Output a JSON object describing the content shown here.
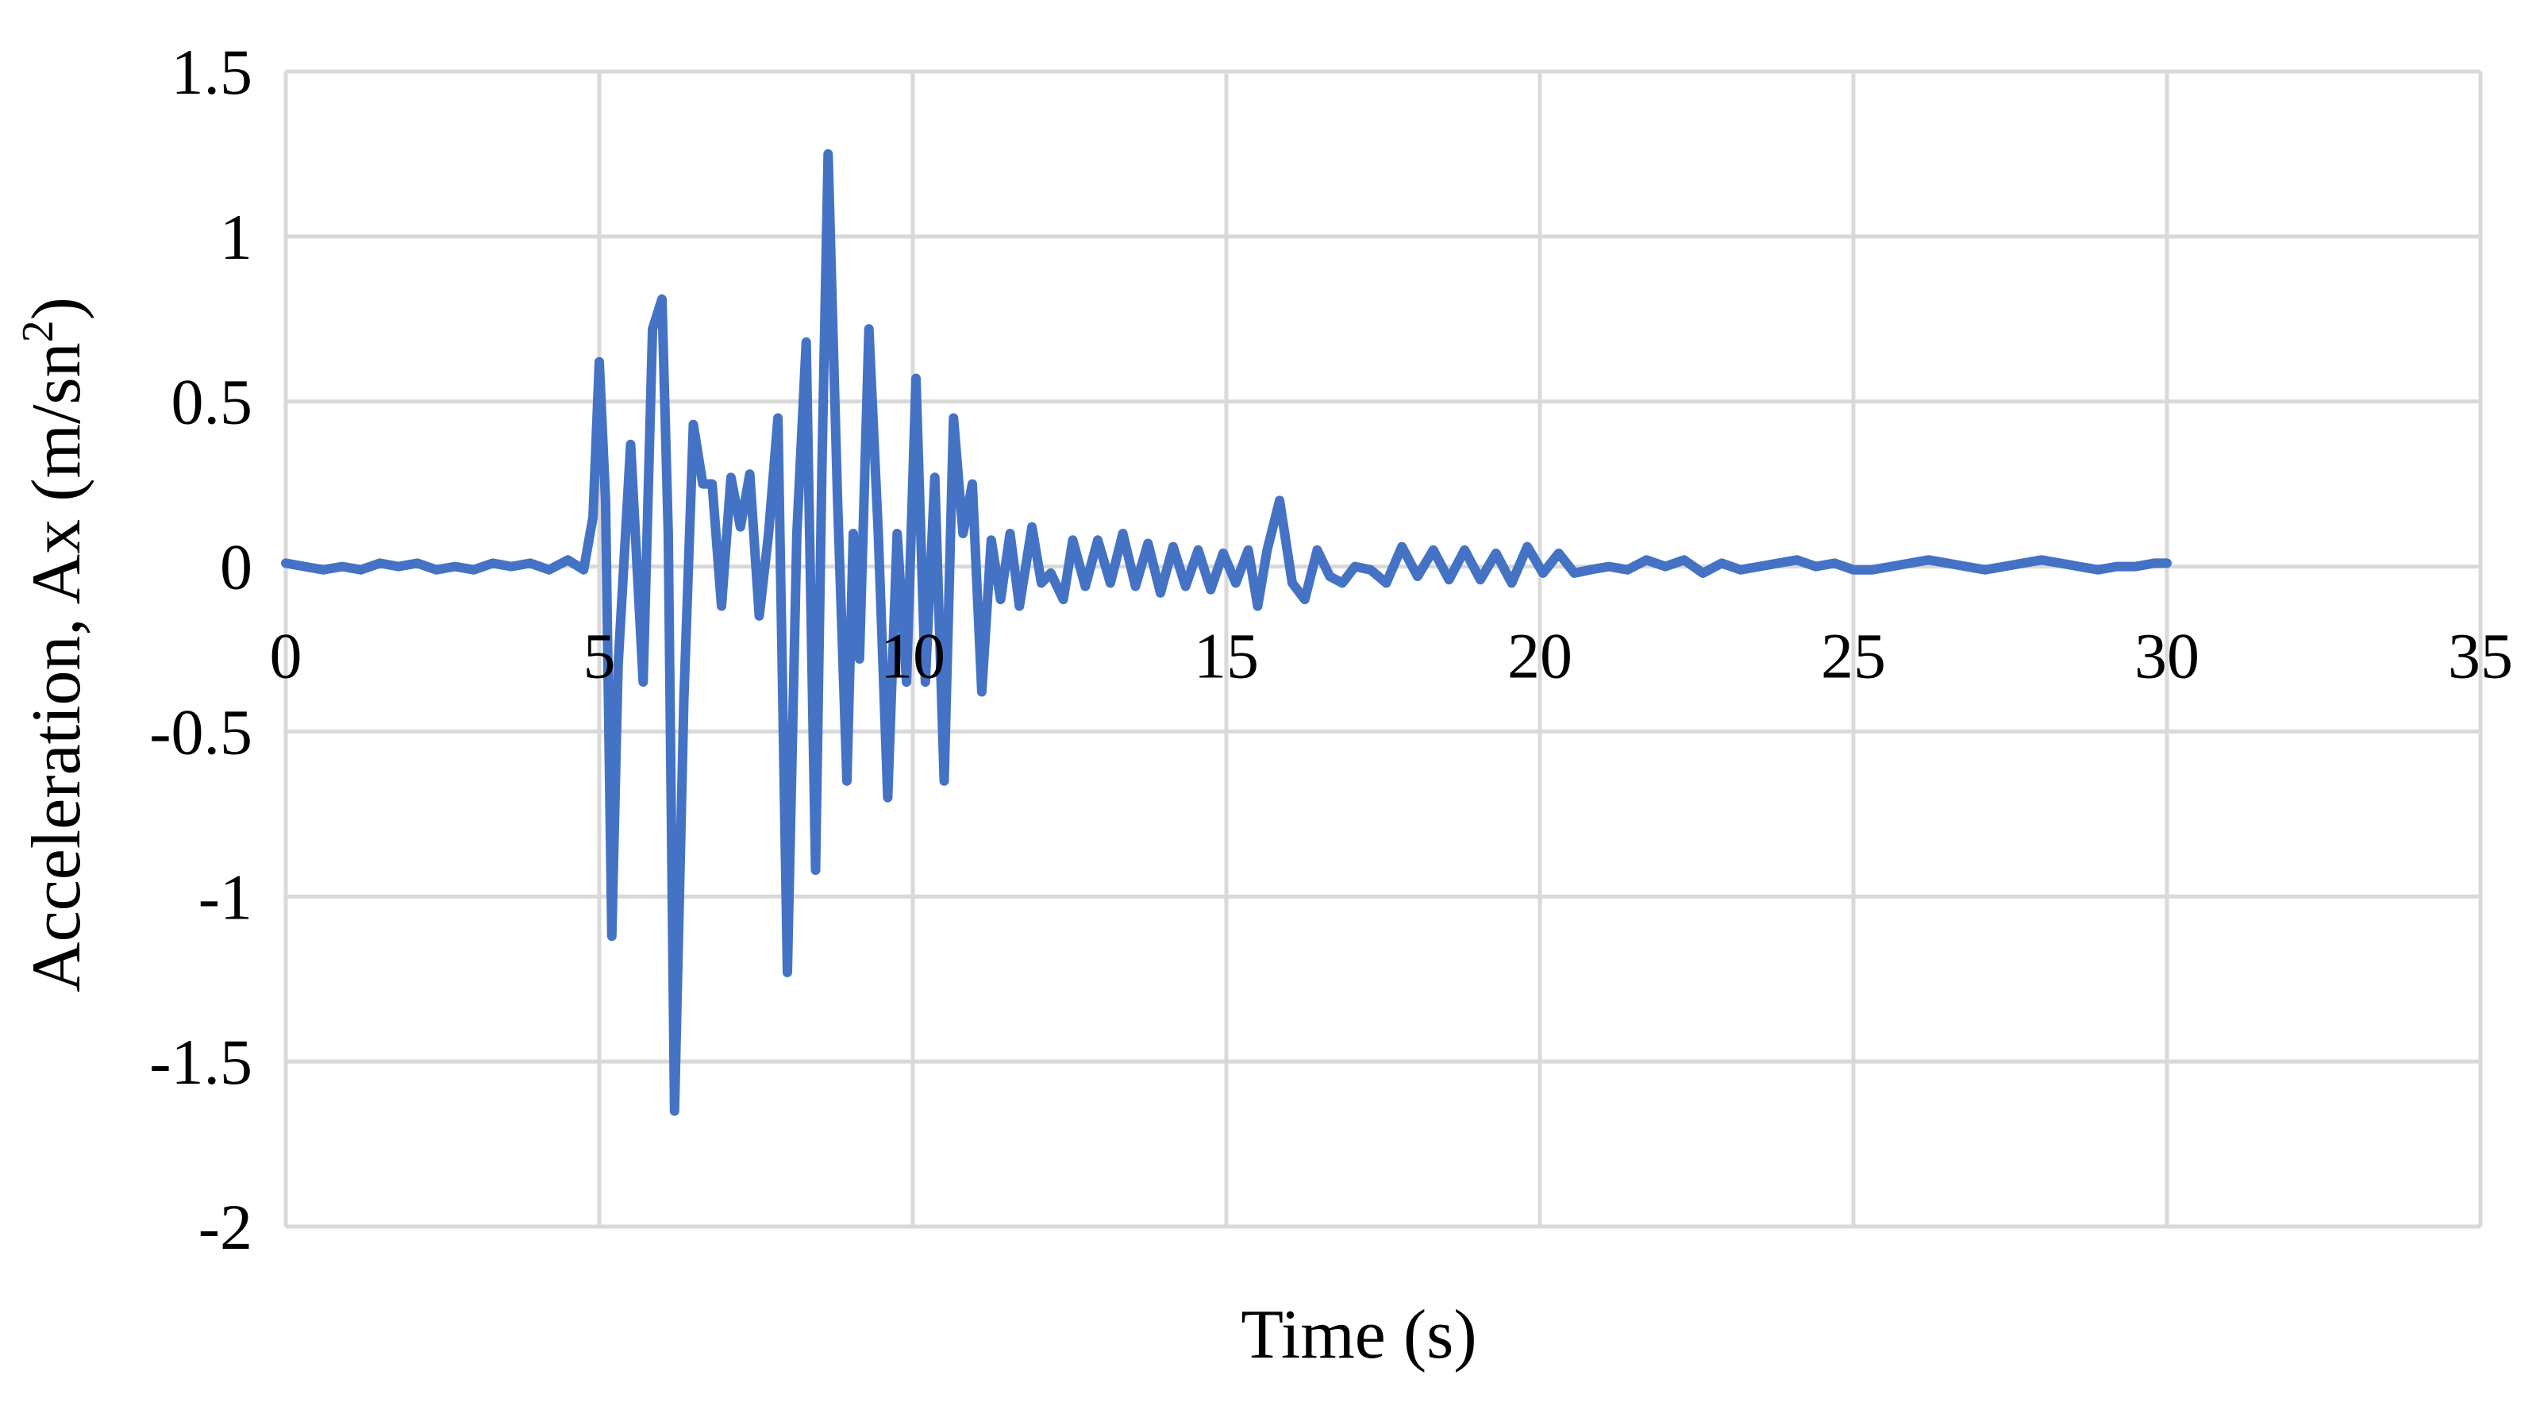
{
  "chart_data": {
    "type": "line",
    "title": "",
    "xlabel": "Time (s)",
    "ylabel_main": "Acceleration, Ax (m/sn",
    "ylabel_sup": "2",
    "ylabel_end": ")",
    "xlim": [
      0,
      35
    ],
    "ylim": [
      -2,
      1.5
    ],
    "xticks": [
      0,
      5,
      10,
      15,
      20,
      25,
      30,
      35
    ],
    "yticks": [
      -2,
      -1.5,
      -1,
      -0.5,
      0,
      0.5,
      1,
      1.5
    ],
    "xtick_labels": [
      "0",
      "5",
      "10",
      "15",
      "20",
      "25",
      "30",
      "35"
    ],
    "ytick_labels": [
      "-2",
      "-1.5",
      "-1",
      "-0.5",
      "0",
      "0.5",
      "1",
      "1.5"
    ],
    "grid": true,
    "legend": "none",
    "series": [
      {
        "color": "#4472c4",
        "x": [
          0,
          0.3,
          0.6,
          0.9,
          1.2,
          1.5,
          1.8,
          2.1,
          2.4,
          2.7,
          3.0,
          3.3,
          3.6,
          3.9,
          4.2,
          4.5,
          4.75,
          4.9,
          5.0,
          5.1,
          5.2,
          5.3,
          5.5,
          5.7,
          5.85,
          6.0,
          6.1,
          6.2,
          6.35,
          6.5,
          6.65,
          6.8,
          6.95,
          7.1,
          7.25,
          7.4,
          7.55,
          7.7,
          7.85,
          8.0,
          8.15,
          8.3,
          8.45,
          8.55,
          8.65,
          8.8,
          8.95,
          9.05,
          9.15,
          9.3,
          9.45,
          9.6,
          9.75,
          9.9,
          10.05,
          10.2,
          10.35,
          10.5,
          10.65,
          10.8,
          10.95,
          11.1,
          11.25,
          11.4,
          11.55,
          11.7,
          11.9,
          12.05,
          12.2,
          12.4,
          12.55,
          12.75,
          12.95,
          13.15,
          13.35,
          13.55,
          13.75,
          13.95,
          14.15,
          14.35,
          14.55,
          14.75,
          14.95,
          15.15,
          15.35,
          15.5,
          15.65,
          15.85,
          16.05,
          16.25,
          16.45,
          16.65,
          16.85,
          17.05,
          17.3,
          17.55,
          17.8,
          18.05,
          18.3,
          18.55,
          18.8,
          19.05,
          19.3,
          19.55,
          19.8,
          20.05,
          20.3,
          20.55,
          20.8,
          21.1,
          21.4,
          21.7,
          22.0,
          22.3,
          22.6,
          22.9,
          23.2,
          23.5,
          23.8,
          24.1,
          24.4,
          24.7,
          25.0,
          25.3,
          25.6,
          25.9,
          26.2,
          26.5,
          26.8,
          27.1,
          27.4,
          27.7,
          28.0,
          28.3,
          28.6,
          28.9,
          29.2,
          29.5,
          29.8,
          30.0
        ],
        "y": [
          0.01,
          0.0,
          -0.01,
          0.0,
          -0.01,
          0.01,
          0.0,
          0.01,
          -0.01,
          0.0,
          -0.01,
          0.01,
          0.0,
          0.01,
          -0.01,
          0.02,
          -0.01,
          0.15,
          0.62,
          0.2,
          -1.12,
          -0.3,
          0.37,
          -0.35,
          0.72,
          0.81,
          0.1,
          -1.65,
          -0.4,
          0.43,
          0.25,
          0.25,
          -0.12,
          0.27,
          0.12,
          0.28,
          -0.15,
          0.1,
          0.45,
          -1.23,
          0.1,
          0.68,
          -0.92,
          0.3,
          1.25,
          0.2,
          -0.65,
          0.1,
          -0.28,
          0.72,
          0.1,
          -0.7,
          0.1,
          -0.35,
          0.57,
          -0.35,
          0.27,
          -0.65,
          0.45,
          0.1,
          0.25,
          -0.38,
          0.08,
          -0.1,
          0.1,
          -0.12,
          0.12,
          -0.05,
          -0.02,
          -0.1,
          0.08,
          -0.06,
          0.08,
          -0.05,
          0.1,
          -0.06,
          0.07,
          -0.08,
          0.06,
          -0.06,
          0.05,
          -0.07,
          0.04,
          -0.05,
          0.05,
          -0.12,
          0.05,
          0.2,
          -0.05,
          -0.1,
          0.05,
          -0.03,
          -0.05,
          0.0,
          -0.01,
          -0.05,
          0.06,
          -0.03,
          0.05,
          -0.04,
          0.05,
          -0.04,
          0.04,
          -0.05,
          0.06,
          -0.02,
          0.04,
          -0.02,
          -0.01,
          0.0,
          -0.01,
          0.02,
          0.0,
          0.02,
          -0.02,
          0.01,
          -0.01,
          0.0,
          0.01,
          0.02,
          0.0,
          0.01,
          -0.01,
          -0.01,
          0.0,
          0.01,
          0.02,
          0.01,
          0.0,
          -0.01,
          0.0,
          0.01,
          0.02,
          0.01,
          0.0,
          -0.01,
          0.0,
          0.0,
          0.01,
          0.01
        ]
      }
    ]
  }
}
